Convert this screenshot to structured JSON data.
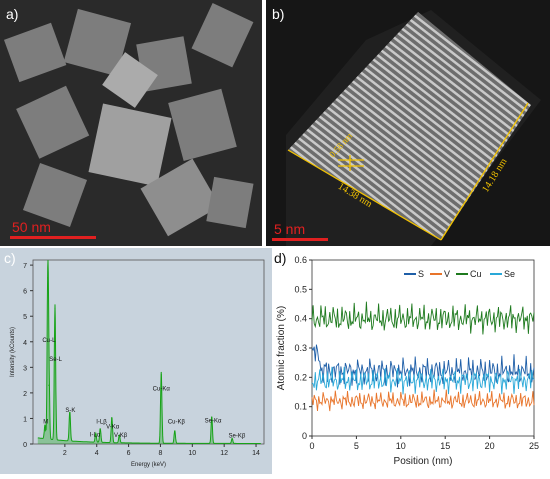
{
  "panels": {
    "a": {
      "label": "a)",
      "scale_bar": "50 nm"
    },
    "b": {
      "label": "b)",
      "scale_bar": "5 nm",
      "annotations": [
        "0.58 nm",
        "14.38 nm",
        "14.18 nm"
      ]
    },
    "c": {
      "label": "c)"
    },
    "d": {
      "label": "d)"
    }
  },
  "colors": {
    "scale_bar": "#e02020",
    "annotation": "#f2c200",
    "eds_bg": "#c8d3dd",
    "eds_line": "#17a317"
  },
  "chart_data": [
    {
      "type": "line",
      "panel": "c",
      "xlabel": "Energy (keV)",
      "ylabel": "Intensity (kCounts)",
      "xlim": [
        0,
        14.5
      ],
      "ylim": [
        0,
        7.2
      ],
      "xticks": [
        2,
        4,
        6,
        8,
        10,
        12,
        14
      ],
      "yticks": [
        0,
        1,
        2,
        3,
        4,
        5,
        6,
        7
      ],
      "peaks": [
        {
          "x": 0.75,
          "y": 0.55
        },
        {
          "x": 0.93,
          "y": 6.5
        },
        {
          "x": 1.0,
          "y": 2.3
        },
        {
          "x": 1.38,
          "y": 5.3
        },
        {
          "x": 2.31,
          "y": 1.15
        },
        {
          "x": 3.94,
          "y": 0.35
        },
        {
          "x": 4.22,
          "y": 0.55
        },
        {
          "x": 4.95,
          "y": 1.0
        },
        {
          "x": 5.42,
          "y": 0.3
        },
        {
          "x": 8.05,
          "y": 2.8
        },
        {
          "x": 8.9,
          "y": 0.5
        },
        {
          "x": 11.22,
          "y": 1.05
        },
        {
          "x": 12.5,
          "y": 0.2
        }
      ],
      "peak_labels": [
        {
          "text": "M",
          "x": 0.8,
          "y": 0.8
        },
        {
          "text": "Cu-L",
          "x": 1.0,
          "y": 4.0
        },
        {
          "text": "Se-L",
          "x": 1.42,
          "y": 3.25
        },
        {
          "text": "S-K",
          "x": 2.35,
          "y": 1.25
        },
        {
          "text": "I-Lβ",
          "x": 4.3,
          "y": 0.8
        },
        {
          "text": "I-Lα",
          "x": 3.9,
          "y": 0.3
        },
        {
          "text": "V-Kα",
          "x": 5.0,
          "y": 0.6
        },
        {
          "text": "V-Kβ",
          "x": 5.5,
          "y": 0.28
        },
        {
          "text": "Cu-Kα",
          "x": 8.05,
          "y": 2.1
        },
        {
          "text": "Cu-Kβ",
          "x": 9.0,
          "y": 0.8
        },
        {
          "text": "Se-Kα",
          "x": 11.3,
          "y": 0.85
        },
        {
          "text": "Se-Kβ",
          "x": 12.8,
          "y": 0.25
        }
      ]
    },
    {
      "type": "line",
      "panel": "d",
      "xlabel": "Position (nm)",
      "ylabel": "Atomic fraction (%)",
      "xlim": [
        0,
        25
      ],
      "ylim": [
        0,
        0.6
      ],
      "xticks": [
        0,
        5,
        10,
        15,
        20,
        25
      ],
      "yticks": [
        0,
        0.1,
        0.2,
        0.3,
        0.4,
        0.5,
        0.6
      ],
      "legend_position": "top-right",
      "series": [
        {
          "name": "S",
          "color": "#1f5fa8",
          "mean": 0.22,
          "amp": 0.045
        },
        {
          "name": "V",
          "color": "#e8742a",
          "mean": 0.12,
          "amp": 0.03
        },
        {
          "name": "Cu",
          "color": "#1e7a1e",
          "mean": 0.4,
          "amp": 0.045
        },
        {
          "name": "Se",
          "color": "#29a8d8",
          "mean": 0.19,
          "amp": 0.04
        }
      ]
    }
  ]
}
